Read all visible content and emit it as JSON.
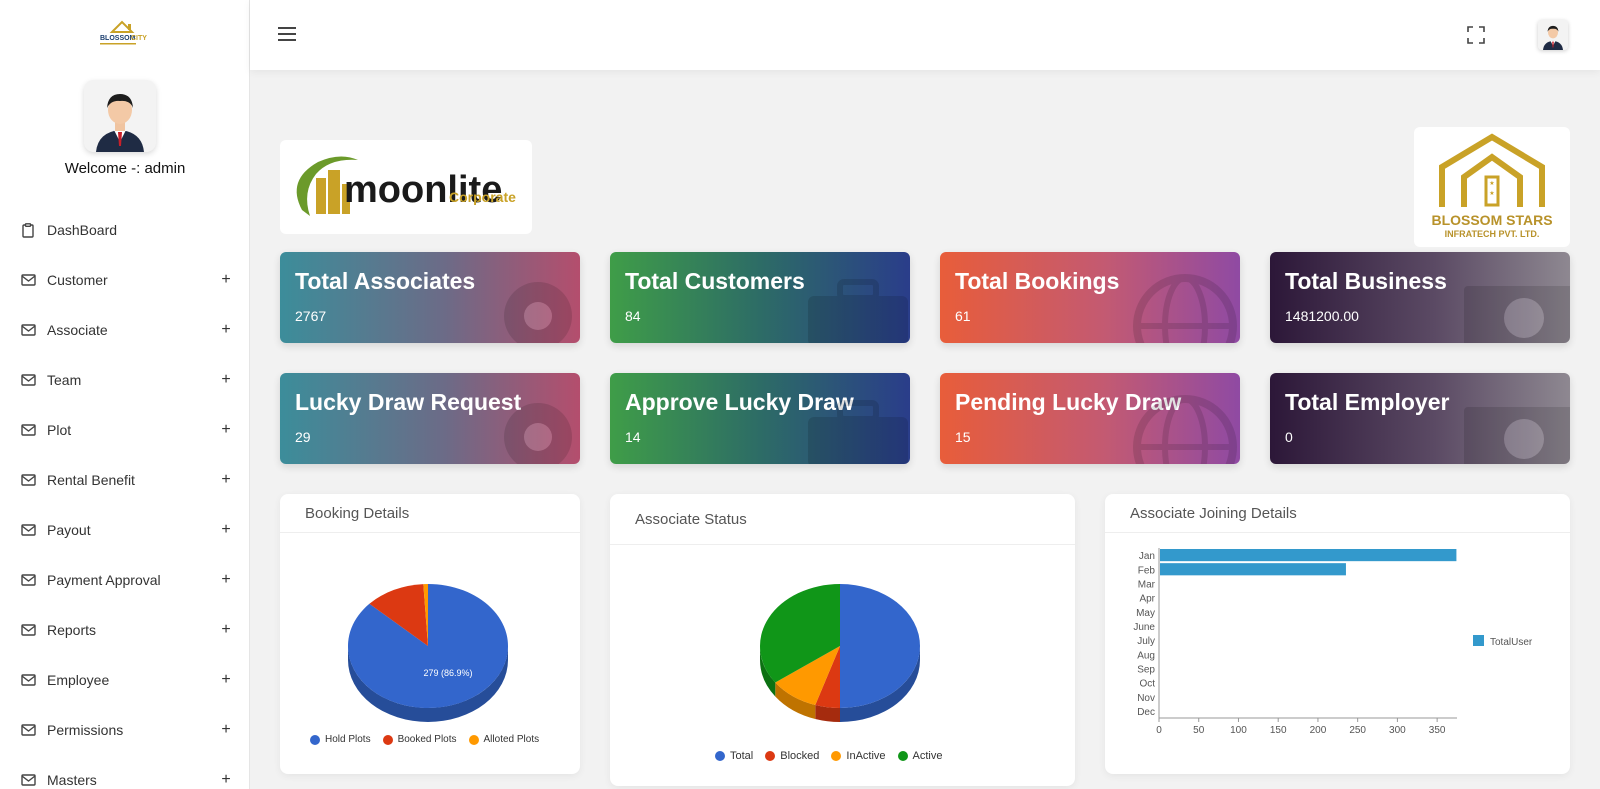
{
  "sidebar": {
    "welcome": "Welcome -: admin",
    "items": [
      {
        "label": "DashBoard",
        "icon": "clipboard-icon",
        "expandable": false
      },
      {
        "label": "Customer",
        "icon": "mail-icon",
        "expandable": true
      },
      {
        "label": "Associate",
        "icon": "mail-icon",
        "expandable": true
      },
      {
        "label": "Team",
        "icon": "mail-icon",
        "expandable": true
      },
      {
        "label": "Plot",
        "icon": "mail-icon",
        "expandable": true
      },
      {
        "label": "Rental Benefit",
        "icon": "mail-icon",
        "expandable": true
      },
      {
        "label": "Payout",
        "icon": "mail-icon",
        "expandable": true
      },
      {
        "label": "Payment Approval",
        "icon": "mail-icon",
        "expandable": true
      },
      {
        "label": "Reports",
        "icon": "mail-icon",
        "expandable": true
      },
      {
        "label": "Employee",
        "icon": "mail-icon",
        "expandable": true
      },
      {
        "label": "Permissions",
        "icon": "mail-icon",
        "expandable": true
      },
      {
        "label": "Masters",
        "icon": "mail-icon",
        "expandable": true
      }
    ],
    "plus": "+"
  },
  "logos": {
    "moonlite_main": "moonlite",
    "moonlite_sub": "Corporate",
    "blossom_main": "BLOSSOM STARS",
    "blossom_sub": "INFRATECH PVT. LTD.",
    "brand_small": "BLOSSOM CITY"
  },
  "cards": [
    {
      "title": "Total Associates",
      "value": "2767"
    },
    {
      "title": "Total Customers",
      "value": "84"
    },
    {
      "title": "Total Bookings",
      "value": "61"
    },
    {
      "title": "Total Business",
      "value": "1481200.00"
    },
    {
      "title": "Lucky Draw Request",
      "value": "29"
    },
    {
      "title": "Approve Lucky Draw",
      "value": "14"
    },
    {
      "title": "Pending Lucky Draw",
      "value": "15"
    },
    {
      "title": "Total Employer",
      "value": "0"
    }
  ],
  "panels": {
    "booking": {
      "title": "Booking Details"
    },
    "status": {
      "title": "Associate Status"
    },
    "joining": {
      "title": "Associate Joining Details"
    }
  },
  "colors": {
    "blue": "#3366cc",
    "red": "#dc3912",
    "orange": "#ff9900",
    "green": "#109618",
    "bar": "#3399cc"
  },
  "chart_data": [
    {
      "type": "pie",
      "title": "Booking Details",
      "labels": [
        "Hold Plots",
        "Booked Plots",
        "Alloted Plots"
      ],
      "values": [
        279,
        39,
        3
      ],
      "slice_label": "279 (86.9%)"
    },
    {
      "type": "pie",
      "title": "Associate Status",
      "labels": [
        "Total",
        "Blocked",
        "InActive",
        "Active"
      ],
      "values": [
        50,
        5,
        10,
        35
      ]
    },
    {
      "type": "bar",
      "orientation": "horizontal",
      "title": "Associate Joining Details",
      "categories": [
        "Jan",
        "Feb",
        "Mar",
        "Apr",
        "May",
        "June",
        "July",
        "Aug",
        "Sep",
        "Oct",
        "Nov",
        "Dec"
      ],
      "series": [
        {
          "name": "TotalUser",
          "values": [
            373,
            234,
            0,
            0,
            0,
            0,
            0,
            0,
            0,
            0,
            0,
            0
          ]
        }
      ],
      "xlim": [
        0,
        375
      ],
      "xticks": [
        "0",
        "50",
        "100",
        "150",
        "200",
        "250",
        "300",
        "350"
      ],
      "legend": "right"
    }
  ]
}
